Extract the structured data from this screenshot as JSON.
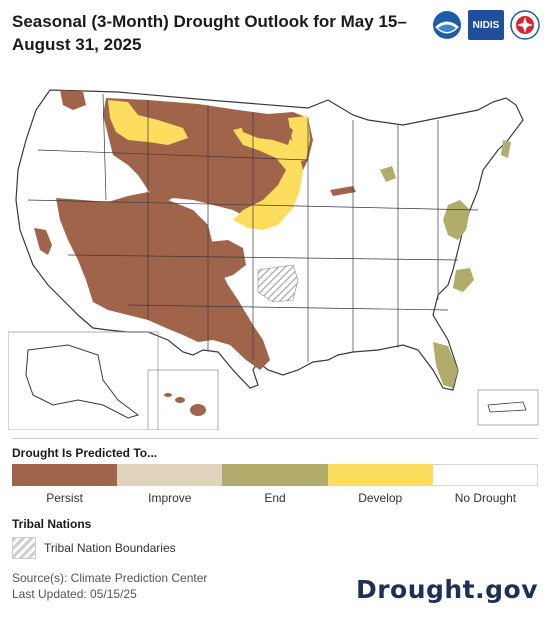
{
  "title": "Seasonal (3-Month) Drought Outlook for May 15–August 31, 2025",
  "logos": {
    "noaa": "noaa-logo",
    "nidis": "NIDIS",
    "nws": "national-weather-service-logo"
  },
  "legend": {
    "title": "Drought Is Predicted To...",
    "items": [
      {
        "label": "Persist",
        "color": "#a0644a"
      },
      {
        "label": "Improve",
        "color": "#e0d3bd"
      },
      {
        "label": "End",
        "color": "#b1ac6b"
      },
      {
        "label": "Develop",
        "color": "#fcdd5d"
      },
      {
        "label": "No Drought",
        "color": "#ffffff"
      }
    ]
  },
  "tribal": {
    "title": "Tribal Nations",
    "label": "Tribal Nation Boundaries"
  },
  "source": {
    "line1": "Source(s): Climate Prediction Center",
    "line2": "Last Updated: 05/15/25"
  },
  "brand": "Drought.gov",
  "colors": {
    "persist": "#a0644a",
    "improve": "#e0d3bd",
    "end": "#b1ac6b",
    "develop": "#fcdd5d",
    "state_border": "#3a3a3a"
  }
}
